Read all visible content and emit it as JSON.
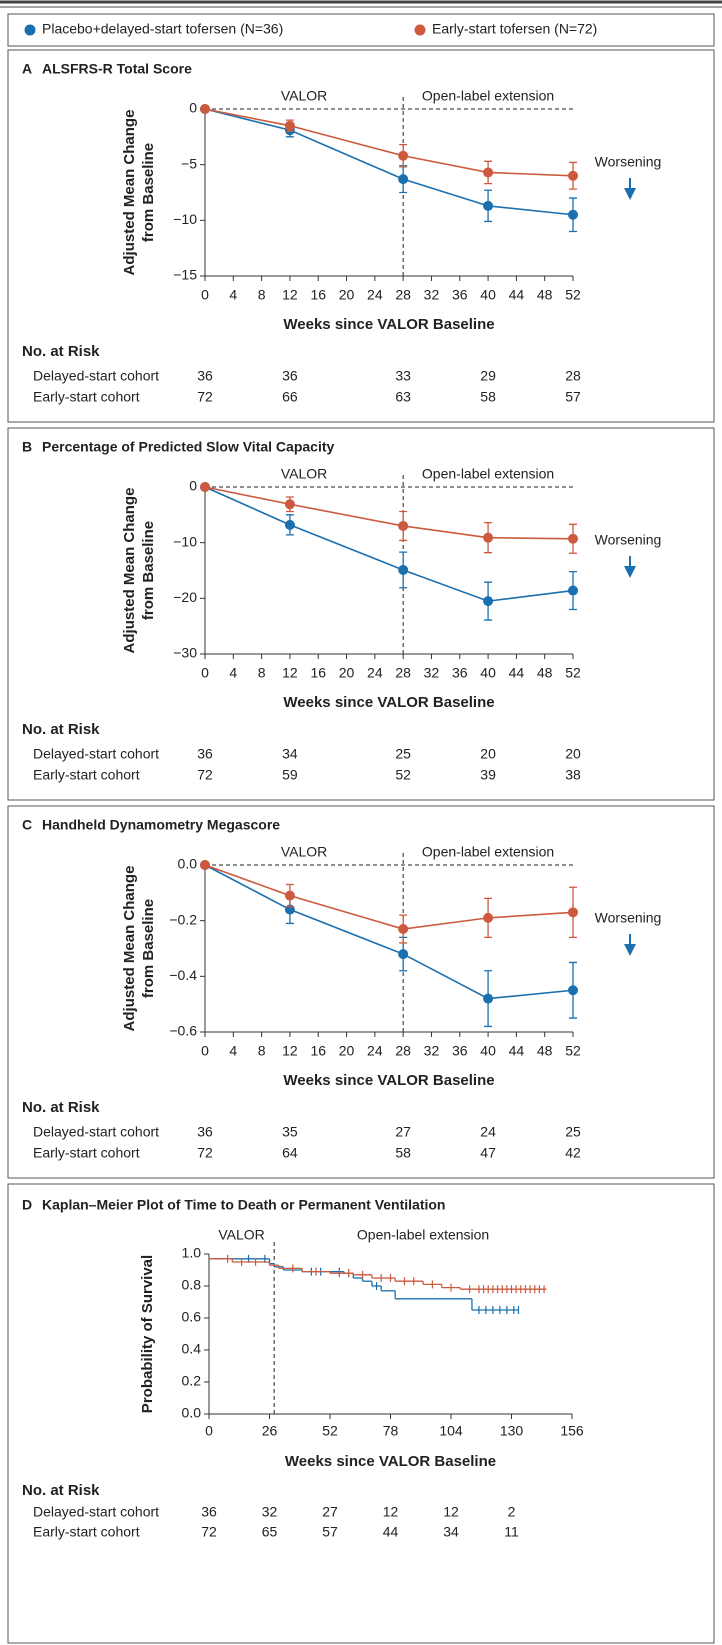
{
  "legend": [
    {
      "name": "Placebo+delayed-start tofersen (N=36)",
      "color": "#1b6fae"
    },
    {
      "name": "Early-start tofersen (N=72)",
      "color": "#cd5a3e"
    }
  ],
  "chart_data": [
    {
      "type": "line",
      "panel": "A",
      "title": "ALSFRS-R Total Score",
      "regions": [
        "VALOR",
        "Open-label extension"
      ],
      "divider": 28,
      "annotation": "Worsening",
      "ylabel": [
        "Adjusted Mean Change",
        "from Baseline"
      ],
      "xlabel": "Weeks since VALOR Baseline",
      "x": [
        0,
        12,
        28,
        40,
        52
      ],
      "xlim": [
        0,
        52
      ],
      "xticks": [
        0,
        4,
        8,
        12,
        16,
        20,
        24,
        28,
        32,
        36,
        40,
        44,
        48,
        52
      ],
      "ylim": [
        -15,
        0
      ],
      "yticks": [
        {
          "value": -15,
          "label": "−15"
        },
        {
          "value": -10,
          "label": "−10"
        },
        {
          "value": -5,
          "label": "−5"
        },
        0
      ],
      "series": [
        {
          "values": [
            0,
            -1.9,
            -6.3,
            -8.7,
            -9.5
          ],
          "errors": [
            null,
            0.6,
            1.2,
            1.4,
            1.5
          ]
        },
        {
          "values": [
            0,
            -1.5,
            -4.2,
            -5.7,
            -6.0
          ],
          "errors": [
            null,
            0.5,
            1.0,
            1.0,
            1.2
          ]
        }
      ],
      "at_risk": {
        "title": "No. at Risk",
        "rows": [
          {
            "label": "Delayed-start cohort",
            "values": [
              36,
              36,
              33,
              29,
              28
            ]
          },
          {
            "label": "Early-start cohort",
            "values": [
              72,
              66,
              63,
              58,
              57
            ]
          }
        ]
      }
    },
    {
      "type": "line",
      "panel": "B",
      "title": "Percentage of Predicted Slow Vital Capacity",
      "regions": [
        "VALOR",
        "Open-label extension"
      ],
      "divider": 28,
      "annotation": "Worsening",
      "ylabel": [
        "Adjusted Mean Change",
        "from Baseline"
      ],
      "xlabel": "Weeks since VALOR Baseline",
      "x": [
        0,
        12,
        28,
        40,
        52
      ],
      "xlim": [
        0,
        52
      ],
      "xticks": [
        0,
        4,
        8,
        12,
        16,
        20,
        24,
        28,
        32,
        36,
        40,
        44,
        48,
        52
      ],
      "ylim": [
        -30,
        0
      ],
      "yticks": [
        {
          "value": -30,
          "label": "−30"
        },
        {
          "value": -20,
          "label": "−20"
        },
        {
          "value": -10,
          "label": "−10"
        },
        0
      ],
      "series": [
        {
          "values": [
            0,
            -6.8,
            -14.9,
            -20.5,
            -18.6
          ],
          "errors": [
            null,
            1.8,
            3.2,
            3.4,
            3.4
          ]
        },
        {
          "values": [
            0,
            -3.1,
            -7.0,
            -9.1,
            -9.3
          ],
          "errors": [
            null,
            1.3,
            2.6,
            2.7,
            2.6
          ]
        }
      ],
      "at_risk": {
        "title": "No. at Risk",
        "rows": [
          {
            "label": "Delayed-start cohort",
            "values": [
              36,
              34,
              25,
              20,
              20
            ]
          },
          {
            "label": "Early-start cohort",
            "values": [
              72,
              59,
              52,
              39,
              38
            ]
          }
        ]
      }
    },
    {
      "type": "line",
      "panel": "C",
      "title": "Handheld Dynamometry Megascore",
      "regions": [
        "VALOR",
        "Open-label extension"
      ],
      "divider": 28,
      "annotation": "Worsening",
      "ylabel": [
        "Adjusted Mean Change",
        "from Baseline"
      ],
      "xlabel": "Weeks since VALOR Baseline",
      "x": [
        0,
        12,
        28,
        40,
        52
      ],
      "xlim": [
        0,
        52
      ],
      "xticks": [
        0,
        4,
        8,
        12,
        16,
        20,
        24,
        28,
        32,
        36,
        40,
        44,
        48,
        52
      ],
      "ylim": [
        -0.6,
        0
      ],
      "yticks": [
        {
          "value": -0.6,
          "label": "−0.6"
        },
        {
          "value": -0.4,
          "label": "−0.4"
        },
        {
          "value": -0.2,
          "label": "−0.2"
        },
        {
          "value": 0,
          "label": "0.0"
        }
      ],
      "series": [
        {
          "values": [
            0,
            -0.16,
            -0.32,
            -0.48,
            -0.45
          ],
          "errors": [
            null,
            0.05,
            0.06,
            0.1,
            0.1
          ]
        },
        {
          "values": [
            0,
            -0.11,
            -0.23,
            -0.19,
            -0.17
          ],
          "errors": [
            null,
            0.04,
            0.05,
            0.07,
            0.09
          ]
        }
      ],
      "at_risk": {
        "title": "No. at Risk",
        "rows": [
          {
            "label": "Delayed-start cohort",
            "values": [
              36,
              35,
              27,
              24,
              25
            ]
          },
          {
            "label": "Early-start cohort",
            "values": [
              72,
              64,
              58,
              47,
              42
            ]
          }
        ]
      }
    },
    {
      "type": "step",
      "panel": "D",
      "title": "Kaplan–Meier Plot of Time to Death or Permanent Ventilation",
      "regions": [
        "VALOR",
        "Open-label extension"
      ],
      "divider": 28,
      "ylabel": [
        "Probability of Survival"
      ],
      "xlabel": "Weeks since VALOR Baseline",
      "xlim": [
        0,
        156
      ],
      "xticks": [
        0,
        26,
        52,
        78,
        104,
        130,
        156
      ],
      "ylim": [
        0,
        1
      ],
      "yticks": [
        {
          "value": 0,
          "label": "0.0"
        },
        0.2,
        0.4,
        0.6,
        0.8,
        {
          "value": 1,
          "label": "1.0"
        }
      ],
      "series": [
        {
          "x": [
            0,
            26,
            28,
            32,
            40,
            58,
            62,
            66,
            70,
            74,
            80,
            113,
            133
          ],
          "values": [
            0.97,
            0.94,
            0.92,
            0.9,
            0.89,
            0.88,
            0.85,
            0.83,
            0.8,
            0.77,
            0.72,
            0.65,
            0.65
          ],
          "censored": [
            17,
            24,
            44,
            48,
            56,
            60,
            72,
            116,
            119,
            122,
            125,
            128,
            131,
            133
          ]
        },
        {
          "x": [
            0,
            10,
            26,
            30,
            40,
            52,
            62,
            70,
            80,
            92,
            100,
            108,
            145
          ],
          "values": [
            0.97,
            0.95,
            0.93,
            0.91,
            0.89,
            0.88,
            0.87,
            0.85,
            0.83,
            0.81,
            0.79,
            0.78,
            0.78
          ],
          "censored": [
            8,
            14,
            20,
            36,
            46,
            56,
            60,
            66,
            74,
            78,
            84,
            88,
            96,
            104,
            112,
            116,
            118,
            120,
            122,
            124,
            126,
            128,
            130,
            132,
            134,
            136,
            138,
            140,
            142,
            144
          ]
        }
      ],
      "at_risk": {
        "title": "No. at Risk",
        "rows": [
          {
            "label": "Delayed-start cohort",
            "values": [
              36,
              32,
              27,
              12,
              12,
              2
            ]
          },
          {
            "label": "Early-start cohort",
            "values": [
              72,
              65,
              57,
              44,
              34,
              11
            ]
          }
        ]
      }
    }
  ]
}
